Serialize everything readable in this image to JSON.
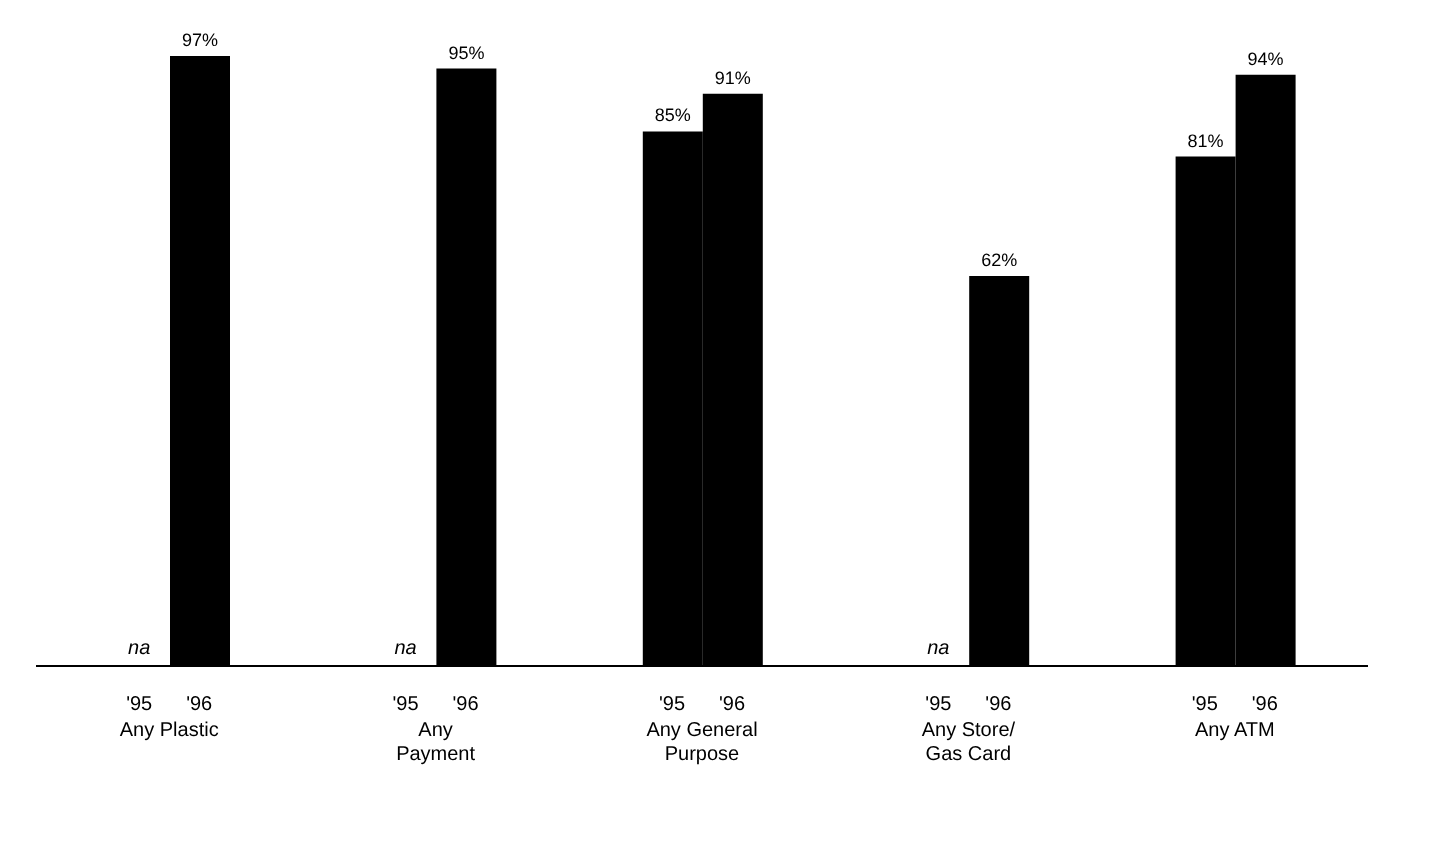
{
  "chart_data": {
    "type": "bar",
    "categories": [
      "Any Plastic",
      "Any\nPayment",
      "Any General\nPurpose",
      "Any Store/\nGas Card",
      "Any ATM"
    ],
    "series": [
      {
        "name": "'95",
        "color": "#000000",
        "values": [
          null,
          null,
          85,
          null,
          81
        ],
        "value_labels": [
          "na",
          "na",
          "85%",
          "na",
          "81%"
        ]
      },
      {
        "name": "'96",
        "color": "#000000",
        "values": [
          97,
          95,
          91,
          62,
          94
        ],
        "value_labels": [
          "97%",
          "95%",
          "91%",
          "62%",
          "94%"
        ]
      }
    ]
  }
}
